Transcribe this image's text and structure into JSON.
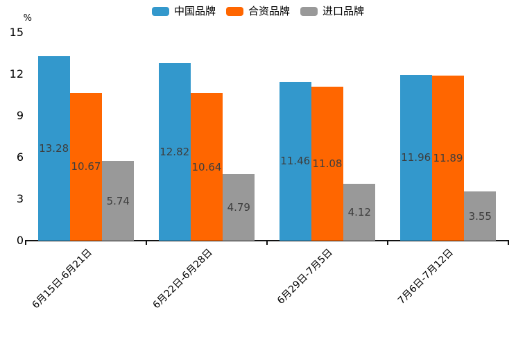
{
  "unit_label": "%",
  "legend": {
    "items": [
      {
        "label": "中国品牌",
        "color": "#3398cc"
      },
      {
        "label": "合资品牌",
        "color": "#ff6600"
      },
      {
        "label": "进口品牌",
        "color": "#999999"
      }
    ]
  },
  "chart_data": {
    "type": "bar",
    "title": "",
    "xlabel": "",
    "ylabel": "%",
    "categories": [
      "6月15日-6月21日",
      "6月22日-6月28日",
      "6月29日-7月5日",
      "7月6日-7月12日"
    ],
    "series": [
      {
        "name": "中国品牌",
        "color": "#3398cc",
        "values": [
          13.28,
          12.82,
          11.46,
          11.96
        ]
      },
      {
        "name": "合资品牌",
        "color": "#ff6600",
        "values": [
          10.67,
          10.64,
          11.08,
          11.89
        ]
      },
      {
        "name": "进口品牌",
        "color": "#999999",
        "values": [
          5.74,
          4.79,
          4.12,
          3.55
        ]
      }
    ],
    "yticks": [
      0,
      3,
      6,
      9,
      12,
      15
    ],
    "ylim": [
      0,
      15
    ],
    "grid": false,
    "legend_position": "top-center",
    "value_labels": "centered-inside-bars",
    "value_label_color": "#3d3d3d",
    "axis_color": "#111111"
  }
}
